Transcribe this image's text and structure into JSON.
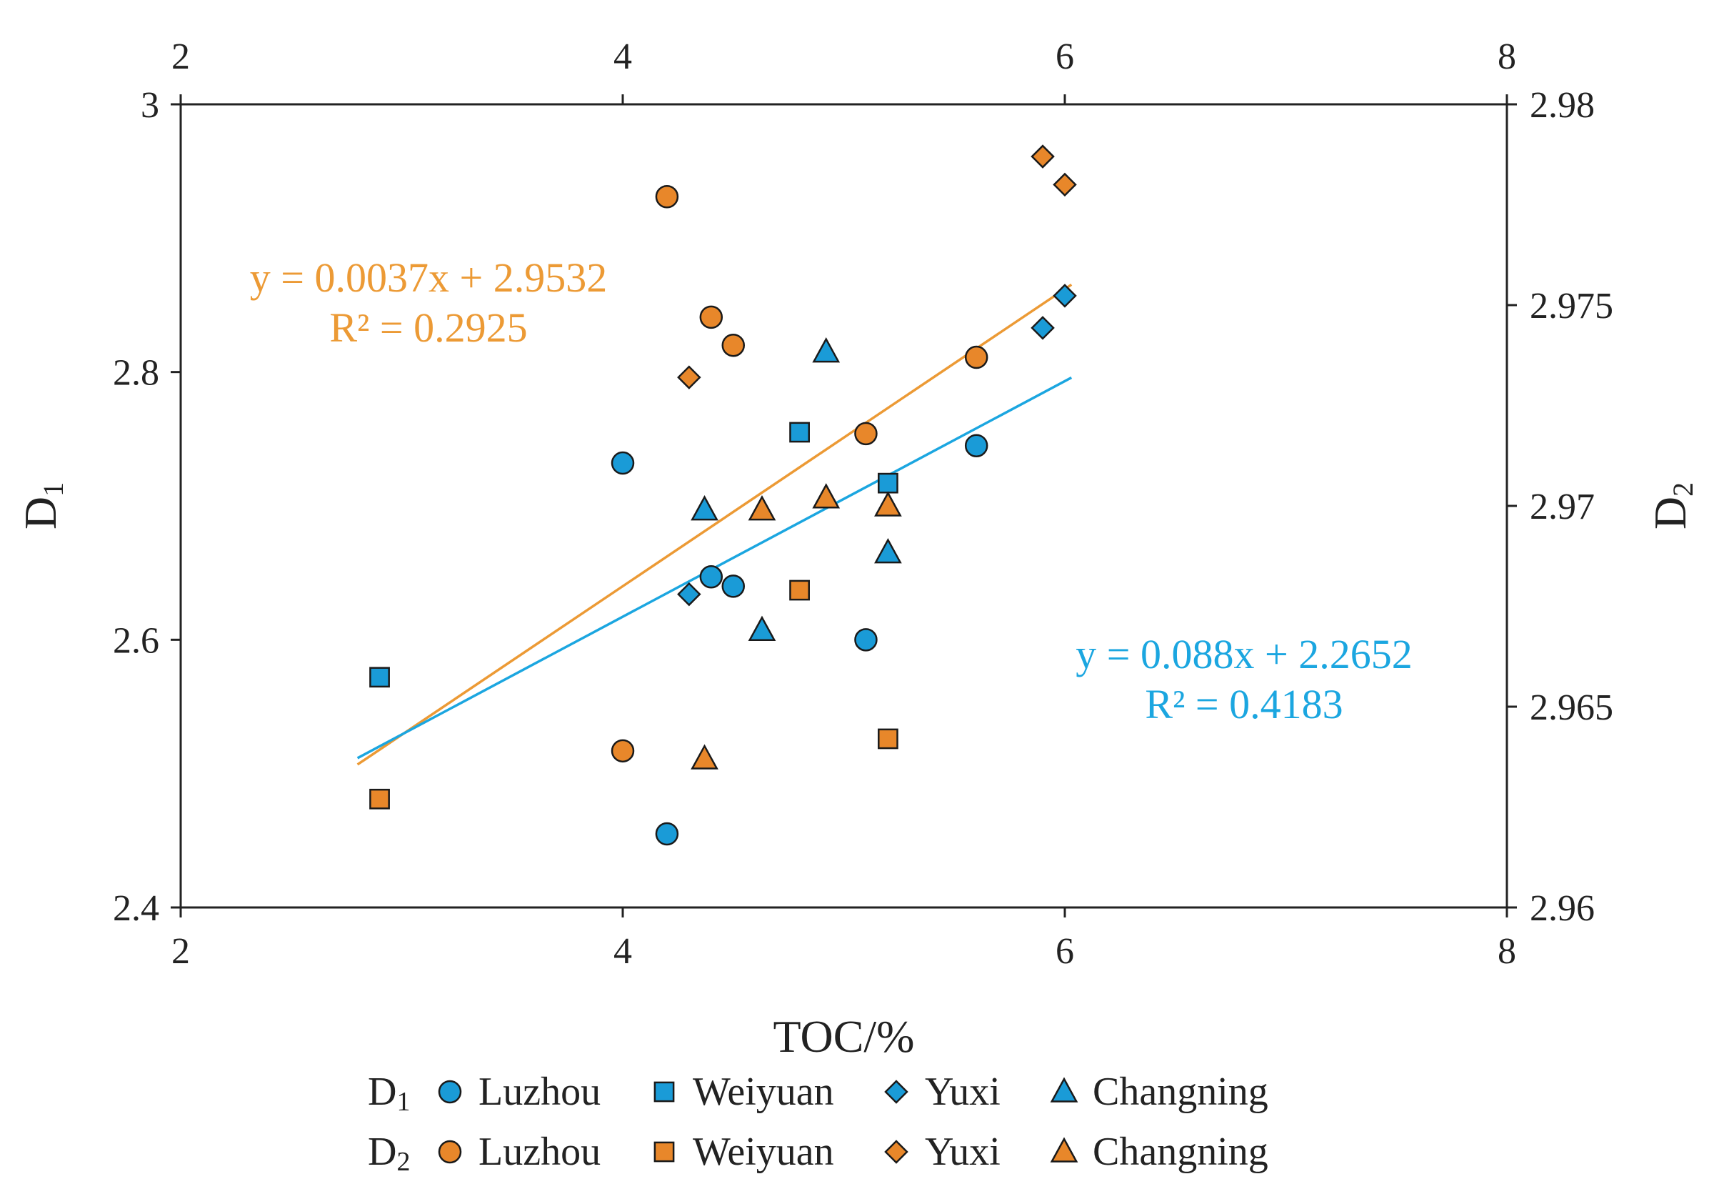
{
  "chart_data": {
    "type": "scatter",
    "xlabel": "TOC/%",
    "ylabel_left": "D",
    "ylabel_left_sub": "1",
    "ylabel_right": "D",
    "ylabel_right_sub": "2",
    "x_range": [
      2,
      8
    ],
    "x_ticks": [
      2,
      4,
      6,
      8
    ],
    "x_tick_labels": [
      "2",
      "4",
      "6",
      "8"
    ],
    "y_left_range": [
      2.4,
      3.0
    ],
    "y_left_ticks": [
      2.4,
      2.6,
      2.8,
      3.0
    ],
    "y_left_tick_labels": [
      "2.4",
      "2.6",
      "2.8",
      "3"
    ],
    "y_right_range": [
      2.96,
      2.98
    ],
    "y_right_ticks": [
      2.96,
      2.965,
      2.97,
      2.975,
      2.98
    ],
    "y_right_tick_labels": [
      "2.96",
      "2.965",
      "2.97",
      "2.975",
      "2.98"
    ],
    "colors": {
      "d1": "#1a9bd7",
      "d2": "#e8872a",
      "d1_line": "#1ba6e0",
      "d2_line": "#ec9a35",
      "axis": "#222222"
    },
    "series": [
      {
        "name": "D1 Luzhou",
        "axis": "left",
        "marker": "circle",
        "color": "#1a9bd7",
        "points": [
          [
            4.0,
            2.732
          ],
          [
            4.2,
            2.455
          ],
          [
            4.4,
            2.647
          ],
          [
            4.5,
            2.64
          ],
          [
            5.1,
            2.6
          ],
          [
            5.6,
            2.745
          ]
        ]
      },
      {
        "name": "D1 Weiyuan",
        "axis": "left",
        "marker": "square",
        "color": "#1a9bd7",
        "points": [
          [
            2.9,
            2.572
          ],
          [
            4.8,
            2.755
          ],
          [
            5.2,
            2.717
          ]
        ]
      },
      {
        "name": "D1 Yuxi",
        "axis": "left",
        "marker": "diamond",
        "color": "#1a9bd7",
        "points": [
          [
            4.3,
            2.634
          ],
          [
            5.9,
            2.833
          ],
          [
            6.0,
            2.857
          ]
        ]
      },
      {
        "name": "D1 Changning",
        "axis": "left",
        "marker": "triangle",
        "color": "#1a9bd7",
        "points": [
          [
            4.37,
            2.697
          ],
          [
            4.63,
            2.607
          ],
          [
            4.92,
            2.815
          ],
          [
            5.2,
            2.665
          ]
        ]
      },
      {
        "name": "D2 Luzhou",
        "axis": "right",
        "marker": "circle",
        "color": "#e8872a",
        "points": [
          [
            4.0,
            2.9639
          ],
          [
            4.2,
            2.9777
          ],
          [
            4.4,
            2.9747
          ],
          [
            4.5,
            2.974
          ],
          [
            5.1,
            2.9718
          ],
          [
            5.6,
            2.9737
          ]
        ]
      },
      {
        "name": "D2 Weiyuan",
        "axis": "right",
        "marker": "square",
        "color": "#e8872a",
        "points": [
          [
            2.9,
            2.9627
          ],
          [
            4.8,
            2.9679
          ],
          [
            5.2,
            2.9642
          ]
        ]
      },
      {
        "name": "D2 Yuxi",
        "axis": "right",
        "marker": "diamond",
        "color": "#e8872a",
        "points": [
          [
            4.3,
            2.9732
          ],
          [
            5.9,
            2.9787
          ],
          [
            6.0,
            2.978
          ]
        ]
      },
      {
        "name": "D2 Changning",
        "axis": "right",
        "marker": "triangle",
        "color": "#e8872a",
        "points": [
          [
            4.37,
            2.9637
          ],
          [
            4.63,
            2.9699
          ],
          [
            4.92,
            2.9702
          ],
          [
            5.2,
            2.97
          ]
        ]
      }
    ],
    "trendlines": [
      {
        "series": "D2",
        "axis": "right",
        "slope": 0.0037,
        "intercept": 2.9532,
        "x_from": 2.8,
        "x_to": 6.03,
        "color": "#ec9a35",
        "equation": "y = 0.0037x + 2.9532",
        "r2": "R² = 0.2925"
      },
      {
        "series": "D1",
        "axis": "left",
        "slope": 0.088,
        "intercept": 2.2652,
        "x_from": 2.8,
        "x_to": 6.03,
        "color": "#1ba6e0",
        "equation": "y = 0.088x + 2.2652",
        "r2": "R² = 0.4183"
      }
    ],
    "legend": {
      "rows": [
        {
          "label": "D",
          "sub": "1",
          "color": "#1a9bd7",
          "items": [
            {
              "marker": "circle",
              "label": "Luzhou"
            },
            {
              "marker": "square",
              "label": "Weiyuan"
            },
            {
              "marker": "diamond",
              "label": "Yuxi"
            },
            {
              "marker": "triangle",
              "label": "Changning"
            }
          ]
        },
        {
          "label": "D",
          "sub": "2",
          "color": "#e8872a",
          "items": [
            {
              "marker": "circle",
              "label": "Luzhou"
            },
            {
              "marker": "square",
              "label": "Weiyuan"
            },
            {
              "marker": "diamond",
              "label": "Yuxi"
            },
            {
              "marker": "triangle",
              "label": "Changning"
            }
          ]
        }
      ],
      "placement": "bottom-center"
    }
  }
}
